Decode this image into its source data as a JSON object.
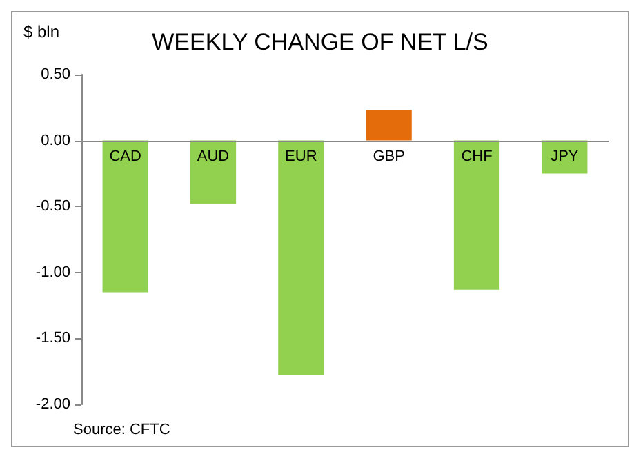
{
  "chart_data": {
    "type": "bar",
    "title": "WEEKLY CHANGE OF NET L/S",
    "ylabel": "$ bln",
    "categories": [
      "CAD",
      "AUD",
      "EUR",
      "GBP",
      "CHF",
      "JPY"
    ],
    "values": [
      -1.15,
      -0.48,
      -1.78,
      0.23,
      -1.13,
      -0.25
    ],
    "colors": [
      "#92d050",
      "#92d050",
      "#92d050",
      "#e46c0a",
      "#92d050",
      "#92d050"
    ],
    "ylim": [
      -2,
      0.5
    ],
    "yticks": [
      {
        "value": -2,
        "label": "-2.00"
      },
      {
        "value": -1.5,
        "label": "-1.50"
      },
      {
        "value": -1,
        "label": "-1.00"
      },
      {
        "value": -0.5,
        "label": "-0.50"
      },
      {
        "value": 0,
        "label": "0.00"
      },
      {
        "value": 0.5,
        "label": "0.50"
      }
    ],
    "grid": false,
    "annotations": [
      "Source: CFTC"
    ]
  }
}
